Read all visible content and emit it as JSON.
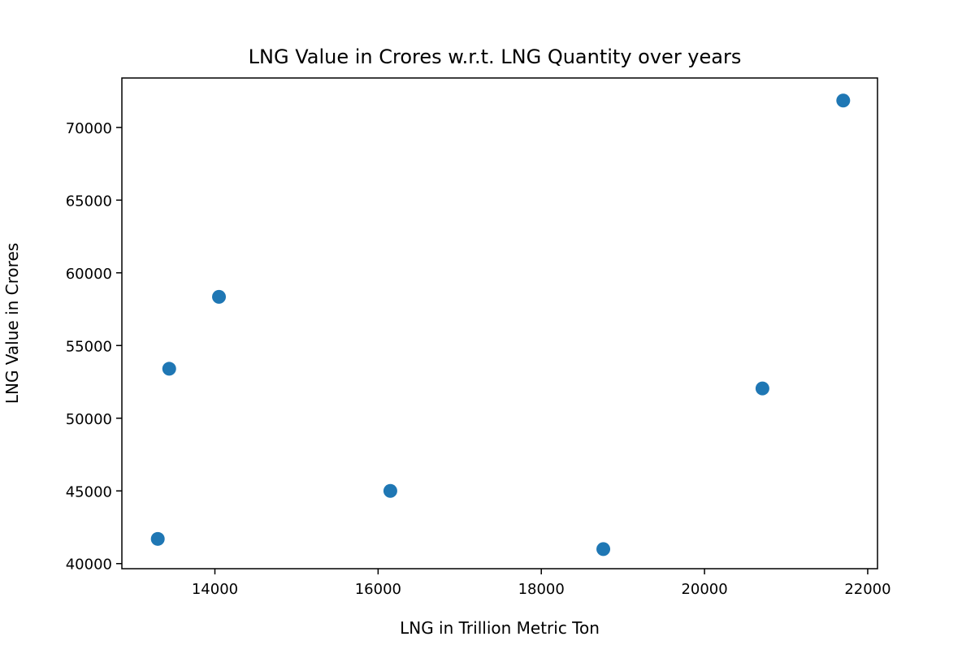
{
  "chart_data": {
    "type": "scatter",
    "title": "LNG Value in Crores w.r.t. LNG Quantity over years",
    "xlabel": "LNG in Trillion Metric Ton",
    "ylabel": "LNG Value in Crores",
    "xlim": [
      12860,
      22120
    ],
    "ylim": [
      39650,
      73400
    ],
    "xticks": [
      14000,
      16000,
      18000,
      20000,
      22000
    ],
    "yticks": [
      40000,
      45000,
      50000,
      55000,
      60000,
      65000,
      70000
    ],
    "xtick_labels": [
      "14000",
      "16000",
      "18000",
      "20000",
      "22000"
    ],
    "ytick_labels": [
      "40000",
      "45000",
      "50000",
      "55000",
      "60000",
      "65000",
      "70000"
    ],
    "grid": false,
    "legend": "none",
    "marker_color": "#1f77b4",
    "points": [
      {
        "x": 13300,
        "y": 41700
      },
      {
        "x": 13440,
        "y": 53400
      },
      {
        "x": 14050,
        "y": 58350
      },
      {
        "x": 16150,
        "y": 45000
      },
      {
        "x": 18760,
        "y": 41000
      },
      {
        "x": 20710,
        "y": 52050
      },
      {
        "x": 21700,
        "y": 71850
      }
    ]
  }
}
